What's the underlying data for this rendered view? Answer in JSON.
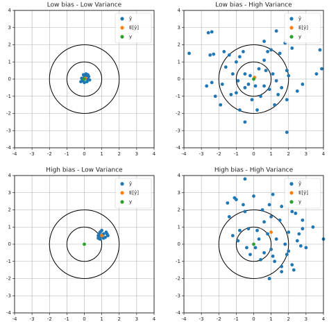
{
  "chart_data": [
    {
      "type": "scatter",
      "title": "Low bias - Low Variance",
      "xlim": [
        -4,
        4
      ],
      "ylim": [
        -4,
        4
      ],
      "xticks": [
        -4,
        -3,
        -2,
        -1,
        0,
        1,
        2,
        3,
        4
      ],
      "yticks": [
        -4,
        -3,
        -2,
        -1,
        0,
        1,
        2,
        3,
        4
      ],
      "grid": true,
      "legend": "upper right",
      "circle_radii": [
        1,
        2
      ],
      "series": [
        {
          "name": "ŷ",
          "color": "#1f77b4",
          "x": [
            0,
            0.1,
            -0.1,
            0.2,
            0.15,
            -0.05,
            0.25,
            0,
            -0.15,
            0.1,
            0.3,
            -0.2,
            0.05,
            0.2
          ],
          "y": [
            0.1,
            0.2,
            -0.1,
            0,
            -0.15,
            0.25,
            0.15,
            -0.2,
            0.05,
            0.3,
            -0.05,
            -0.15,
            0.05,
            0.25
          ]
        },
        {
          "name": "E[ŷ]",
          "color": "#ff7f0e",
          "x": [
            0.05
          ],
          "y": [
            0.05
          ]
        },
        {
          "name": "y",
          "color": "#2ca02c",
          "x": [
            0
          ],
          "y": [
            0
          ]
        }
      ]
    },
    {
      "type": "scatter",
      "title": "Low bias - High Variance",
      "xlim": [
        -4,
        4
      ],
      "ylim": [
        -4,
        4
      ],
      "xticks": [
        -4,
        -3,
        -2,
        -1,
        0,
        1,
        2,
        3,
        4
      ],
      "yticks": [
        -4,
        -3,
        -2,
        -1,
        0,
        1,
        2,
        3,
        4
      ],
      "grid": true,
      "legend": "upper right",
      "circle_radii": [
        1,
        2
      ],
      "series": [
        {
          "name": "ŷ",
          "color": "#1f77b4",
          "x": [
            -3.7,
            -2.6,
            -2.4,
            -2.5,
            -2.3,
            -2.7,
            -2.4,
            -2.2,
            -1.9,
            -1.8,
            -1.6,
            -1.7,
            -1.4,
            -1.0,
            -0.8,
            -0.6,
            -0.5,
            -0.3,
            -0.2,
            -0.5,
            -1.0,
            -1.3,
            -0.8,
            -0.5,
            -0.1,
            0.2,
            0.4,
            0.6,
            0.7,
            0.6,
            0.8,
            0.6,
            1.0,
            1.3,
            1.5,
            1.8,
            2.2,
            1.9,
            2.0,
            1.6,
            1.4,
            1.2,
            1.9,
            2.5,
            2.8,
            1.9,
            3.6,
            3.9,
            3.8,
            0.9,
            0.3,
            1.1,
            -1.2,
            -0.9,
            0.1,
            1.3
          ],
          "y": [
            1.5,
            2.7,
            2.75,
            1.4,
            1.45,
            -0.4,
            -0.2,
            -1.0,
            -1.5,
            -0.3,
            0.7,
            1.6,
            1.4,
            1.0,
            1.3,
            1.6,
            0.3,
            -0.3,
            0.2,
            -0.5,
            -0.8,
            -0.9,
            -1.8,
            -2.5,
            -1.2,
            -1.8,
            -1.0,
            -0.4,
            0.5,
            1.1,
            1.6,
            2.2,
            1.7,
            2.8,
            1.5,
            2.1,
            1.8,
            0.5,
            0.2,
            -0.5,
            -0.9,
            -1.5,
            -1.2,
            -0.7,
            -0.3,
            -3.1,
            0.3,
            0.6,
            1.7,
            -0.6,
            0.6,
            0.3,
            0.3,
            -0.1,
            -0.4,
            -0.1
          ]
        },
        {
          "name": "E[ŷ]",
          "color": "#ff7f0e",
          "x": [
            0.05
          ],
          "y": [
            0.1
          ]
        },
        {
          "name": "y",
          "color": "#2ca02c",
          "x": [
            0
          ],
          "y": [
            0
          ]
        }
      ]
    },
    {
      "type": "scatter",
      "title": "High bias - Low Variance",
      "xlim": [
        -4,
        4
      ],
      "ylim": [
        -4,
        4
      ],
      "xticks": [
        -4,
        -3,
        -2,
        -1,
        0,
        1,
        2,
        3,
        4
      ],
      "yticks": [
        -4,
        -3,
        -2,
        -1,
        0,
        1,
        2,
        3,
        4
      ],
      "grid": true,
      "legend": "upper right",
      "circle_radii": [
        1,
        2
      ],
      "series": [
        {
          "name": "ŷ",
          "color": "#1f77b4",
          "x": [
            0.9,
            1.1,
            0.8,
            1.2,
            1.3,
            0.9,
            1.0,
            1.1,
            0.85,
            1.25,
            0.95,
            1.05,
            0.8,
            1.35
          ],
          "y": [
            0.7,
            0.6,
            0.5,
            0.4,
            0.6,
            0.3,
            0.8,
            0.35,
            0.6,
            0.7,
            0.45,
            0.55,
            0.35,
            0.5
          ]
        },
        {
          "name": "E[ŷ]",
          "color": "#ff7f0e",
          "x": [
            1.0
          ],
          "y": [
            0.5
          ]
        },
        {
          "name": "y",
          "color": "#2ca02c",
          "x": [
            0
          ],
          "y": [
            0
          ]
        }
      ]
    },
    {
      "type": "scatter",
      "title": "High bias - High Variance",
      "xlim": [
        -4,
        4
      ],
      "ylim": [
        -4,
        4
      ],
      "xticks": [
        -4,
        -3,
        -2,
        -1,
        0,
        1,
        2,
        3,
        4
      ],
      "yticks": [
        -4,
        -3,
        -2,
        -1,
        0,
        1,
        2,
        3,
        4
      ],
      "grid": true,
      "legend": "upper right",
      "circle_radii": [
        1,
        2
      ],
      "series": [
        {
          "name": "ŷ",
          "color": "#1f77b4",
          "x": [
            -0.5,
            -1.0,
            -1.1,
            -1.5,
            -0.6,
            0.0,
            0.9,
            1.1,
            1.6,
            2.2,
            2.4,
            2.8,
            3.4,
            4.0,
            2.5,
            2.0,
            1.5,
            1.0,
            0.6,
            0.2,
            -0.3,
            -0.8,
            -1.2,
            -1.4,
            -0.9,
            -0.4,
            -0.2,
            0.4,
            0.6,
            1.0,
            1.1,
            0.9,
            1.2,
            1.6,
            1.6,
            2.0,
            2.2,
            2.3,
            2.7,
            2.8,
            3.0,
            1.3,
            0.8,
            0.3,
            1.8,
            -0.5,
            0.5,
            2.6,
            1.9,
            0.1
          ],
          "y": [
            3.8,
            2.6,
            2.7,
            2.4,
            2.3,
            2.8,
            2.3,
            2.9,
            2.2,
            1.9,
            1.8,
            1.4,
            1.0,
            0.3,
            0.2,
            0.7,
            1.4,
            1.6,
            1.3,
            0.8,
            0.9,
            0.8,
            0.5,
            1.6,
            0.2,
            -0.2,
            -0.6,
            -0.9,
            -0.5,
            -0.3,
            -0.7,
            -2.0,
            -1.0,
            -1.3,
            -1.6,
            -0.4,
            -1.2,
            -1.5,
            -0.1,
            0.9,
            -0.2,
            0.3,
            0.6,
            0.3,
            0.0,
            1.9,
            2.0,
            0.6,
            -0.6,
            -0.2
          ]
        },
        {
          "name": "E[ŷ]",
          "color": "#ff7f0e",
          "x": [
            1.0
          ],
          "y": [
            0.7
          ]
        },
        {
          "name": "y",
          "color": "#2ca02c",
          "x": [
            0
          ],
          "y": [
            0
          ]
        }
      ]
    }
  ]
}
